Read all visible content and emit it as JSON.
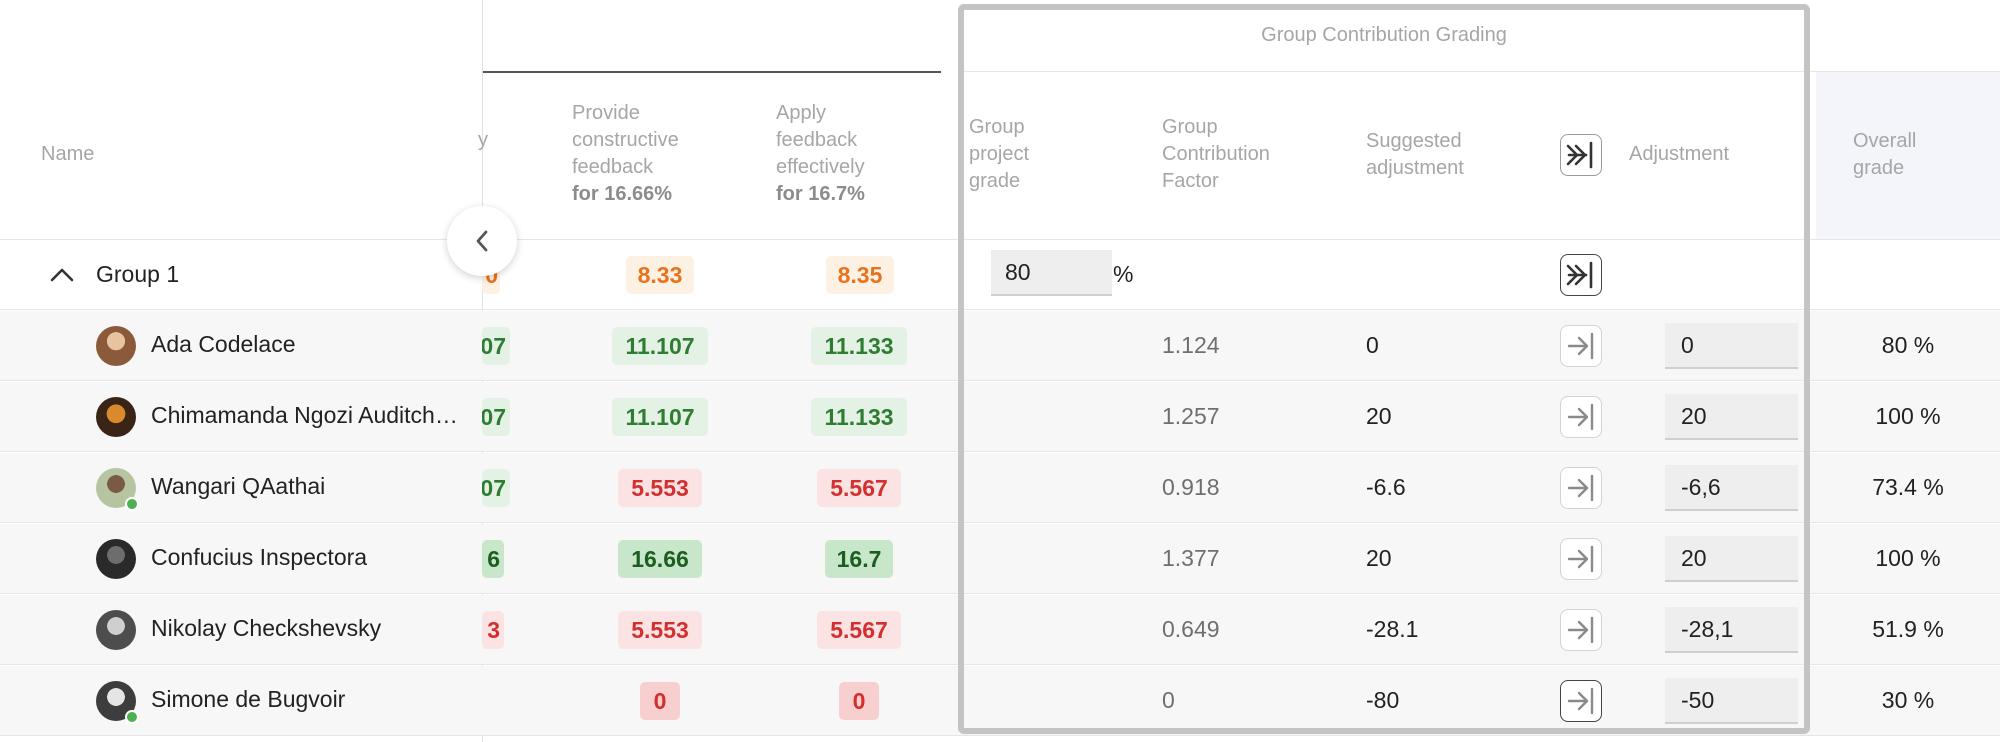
{
  "header": {
    "name_col": "Name",
    "col_partial": "y",
    "col_provide": {
      "line1": "Provide",
      "line2": "constructive",
      "line3": "feedback",
      "weight": "for 16.66%"
    },
    "col_apply": {
      "line1": "Apply",
      "line2": "feedback",
      "line3": "effectively",
      "weight": "for 16.7%"
    },
    "gcg_title": "Group Contribution Grading",
    "col_project": {
      "line1": "Group",
      "line2": "project",
      "line3": "grade"
    },
    "col_factor": {
      "line1": "Group",
      "line2": "Contribution",
      "line3": "Factor"
    },
    "col_suggested": {
      "line1": "Suggested",
      "line2": "adjustment"
    },
    "col_adjustment": "Adjustment",
    "col_overall": {
      "line1": "Overall",
      "line2": "grade"
    }
  },
  "group": {
    "label": "Group 1",
    "partial": "0",
    "provide": "8.33",
    "apply": "8.35",
    "project_grade": "80",
    "percent_sign": "%"
  },
  "students": [
    {
      "name": "Ada Codelace",
      "partial": "07",
      "provide": "11.107",
      "apply": "11.133",
      "factor": "1.124",
      "suggested": "0",
      "adjustment": "0",
      "overall": "80 %",
      "online": false
    },
    {
      "name": "Chimamanda Ngozi Auditch…",
      "partial": "07",
      "provide": "11.107",
      "apply": "11.133",
      "factor": "1.257",
      "suggested": "20",
      "adjustment": "20",
      "overall": "100 %",
      "online": false
    },
    {
      "name": "Wangari QAathai",
      "partial": "07",
      "provide": "5.553",
      "apply": "5.567",
      "factor": "0.918",
      "suggested": "-6.6",
      "adjustment": "-6,6",
      "overall": "73.4 %",
      "online": true
    },
    {
      "name": "Confucius Inspectora",
      "partial": "6",
      "provide": "16.66",
      "apply": "16.7",
      "factor": "1.377",
      "suggested": "20",
      "adjustment": "20",
      "overall": "100 %",
      "online": false
    },
    {
      "name": "Nikolay Checkshevsky",
      "partial": "3",
      "provide": "5.553",
      "apply": "5.567",
      "factor": "0.649",
      "suggested": "-28.1",
      "adjustment": "-28,1",
      "overall": "51.9 %",
      "online": false
    },
    {
      "name": "Simone de Bugvoir",
      "partial": "",
      "provide": "0",
      "apply": "0",
      "factor": "0",
      "suggested": "-80",
      "adjustment": "-50",
      "overall": "30 %",
      "online": true
    }
  ],
  "icons": {
    "collapse_panel": "chevron-left-icon",
    "group_toggle": "chevron-up-icon",
    "apply_all": "double-arrow-to-bar-icon",
    "apply_one": "arrow-to-bar-icon"
  },
  "colors": {
    "orange": "#e8731c",
    "green": "#2e7d32",
    "red": "#d32f2f",
    "highlight_col": "#f4f5fb",
    "frame": "#c4c4c4"
  }
}
